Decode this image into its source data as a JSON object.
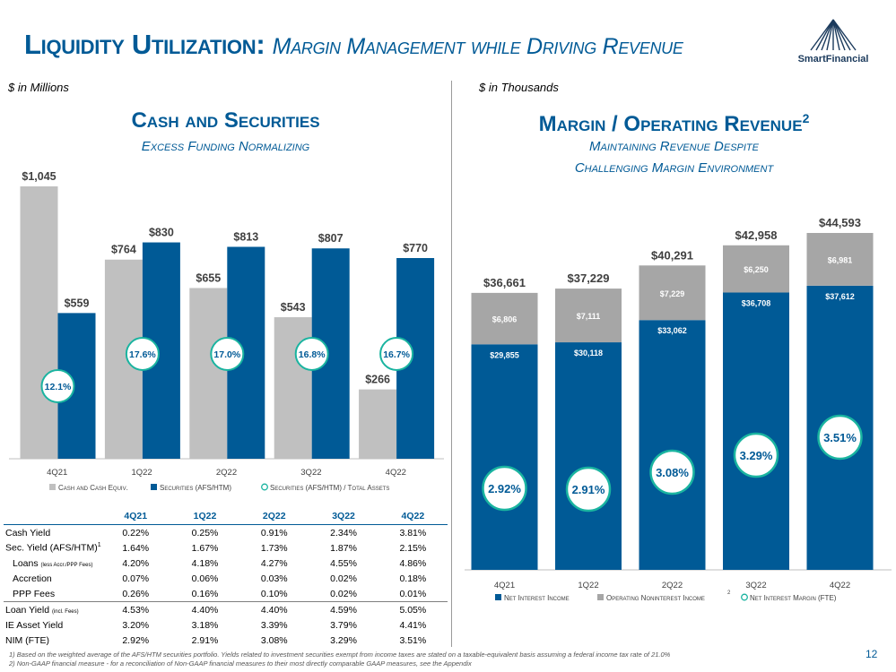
{
  "header": {
    "title_main": "Liquidity Utilization:",
    "title_sub": "Margin Management while Driving Revenue",
    "logo_text": "SmartFinancial"
  },
  "left": {
    "units": "$ in Millions",
    "title": "Cash and Securities",
    "subtitle": "Excess Funding Normalizing"
  },
  "right": {
    "units": "$ in Thousands",
    "title": "Margin / Operating Revenue",
    "title_sup": "2",
    "subtitle_1": "Maintaining Revenue Despite",
    "subtitle_2": "Challenging Margin Environment"
  },
  "chart_data": [
    {
      "type": "bar",
      "title": "Cash and Securities",
      "categories": [
        "4Q21",
        "1Q22",
        "2Q22",
        "3Q22",
        "4Q22"
      ],
      "series": [
        {
          "name": "Cash and Cash Equiv.",
          "values": [
            1045,
            764,
            655,
            543,
            266
          ],
          "labels": [
            "$1,045",
            "$764",
            "$655",
            "$543",
            "$266"
          ],
          "color": "#c0c0c0"
        },
        {
          "name": "Securities (AFS/HTM)",
          "values": [
            559,
            830,
            813,
            807,
            770
          ],
          "labels": [
            "$559",
            "$830",
            "$813",
            "$807",
            "$770"
          ],
          "color": "#005a96"
        }
      ],
      "ratio_series": {
        "name": "Securities (AFS/HTM) / Total Assets",
        "values": [
          12.1,
          17.6,
          17.0,
          16.8,
          16.7
        ],
        "labels": [
          "12.1%",
          "17.6%",
          "17.0%",
          "16.8%",
          "16.7%"
        ],
        "color": "#1ab4a0"
      },
      "legend": [
        "Cash and Cash Equiv.",
        "Securities (AFS/HTM)",
        "Securities (AFS/HTM) / Total Assets"
      ],
      "legend_position": "bottom",
      "ylim": [
        0,
        1100
      ]
    },
    {
      "type": "bar",
      "stacked": true,
      "title": "Margin / Operating Revenue",
      "categories": [
        "4Q21",
        "1Q22",
        "2Q22",
        "3Q22",
        "4Q22"
      ],
      "series": [
        {
          "name": "Net Interest Income",
          "values": [
            29855,
            30118,
            33062,
            36708,
            37612
          ],
          "labels": [
            "$29,855",
            "$30,118",
            "$33,062",
            "$36,708",
            "$37,612"
          ],
          "color": "#005a96"
        },
        {
          "name": "Operating Noninterest Income",
          "values": [
            6806,
            7111,
            7229,
            6250,
            6981
          ],
          "labels": [
            "$6,806",
            "$7,111",
            "$7,229",
            "$6,250",
            "$6,981"
          ],
          "color": "#a6a6a6"
        }
      ],
      "totals": {
        "values": [
          36661,
          37229,
          40291,
          42958,
          44593
        ],
        "labels": [
          "$36,661",
          "$37,229",
          "$40,291",
          "$42,958",
          "$44,593"
        ]
      },
      "ratio_series": {
        "name": "Net Interest Margin (FTE)",
        "values": [
          2.92,
          2.91,
          3.08,
          3.29,
          3.51
        ],
        "labels": [
          "2.92%",
          "2.91%",
          "3.08%",
          "3.29%",
          "3.51%"
        ],
        "color": "#1ab4a0"
      },
      "legend": [
        "Net Interest Income",
        "Operating Noninterest Income",
        "Net Interest Margin (FTE)"
      ],
      "legend_sup": "2",
      "legend_position": "bottom",
      "ylim": [
        0,
        46000
      ]
    }
  ],
  "yield_table": {
    "headers": [
      "4Q21",
      "1Q22",
      "2Q22",
      "3Q22",
      "4Q22"
    ],
    "rows": [
      {
        "label": "Cash Yield",
        "sup": "",
        "small": "",
        "values": [
          "0.22%",
          "0.25%",
          "0.91%",
          "2.34%",
          "3.81%"
        ]
      },
      {
        "label": "Sec. Yield (AFS/HTM)",
        "sup": "1",
        "small": "",
        "values": [
          "1.64%",
          "1.67%",
          "1.73%",
          "1.87%",
          "2.15%"
        ]
      },
      {
        "label": "Loans",
        "sup": "",
        "small": "(less Accr./PPP Fees)",
        "values": [
          "4.20%",
          "4.18%",
          "4.27%",
          "4.55%",
          "4.86%"
        ]
      },
      {
        "label": "Accretion",
        "sup": "",
        "small": "",
        "values": [
          "0.07%",
          "0.06%",
          "0.03%",
          "0.02%",
          "0.18%"
        ]
      },
      {
        "label": "PPP Fees",
        "sup": "",
        "small": "",
        "values": [
          "0.26%",
          "0.16%",
          "0.10%",
          "0.02%",
          "0.01%"
        ]
      },
      {
        "label": "Loan Yield",
        "sup": "",
        "small": "(incl. Fees)",
        "values": [
          "4.53%",
          "4.40%",
          "4.40%",
          "4.59%",
          "5.05%"
        ]
      },
      {
        "label": "IE Asset Yield",
        "sup": "",
        "small": "",
        "values": [
          "3.20%",
          "3.18%",
          "3.39%",
          "3.79%",
          "4.41%"
        ]
      },
      {
        "label": "NIM (FTE)",
        "sup": "",
        "small": "",
        "values": [
          "2.92%",
          "2.91%",
          "3.08%",
          "3.29%",
          "3.51%"
        ]
      }
    ]
  },
  "footnotes": [
    "1)  Based on the weighted average of the AFS/HTM securities portfolio. Yields related to investment securities exempt from income taxes are stated on a taxable-equivalent basis assuming a federal income tax rate of 21.0%",
    "2)  Non-GAAP financial measure - for a reconciliation of Non-GAAP financial measures to their most directly comparable GAAP measures, see the Appendix"
  ],
  "page_number": "12",
  "colors": {
    "brand": "#005a96",
    "gray_light": "#c0c0c0",
    "gray_dark": "#a6a6a6",
    "teal": "#1ab4a0"
  }
}
